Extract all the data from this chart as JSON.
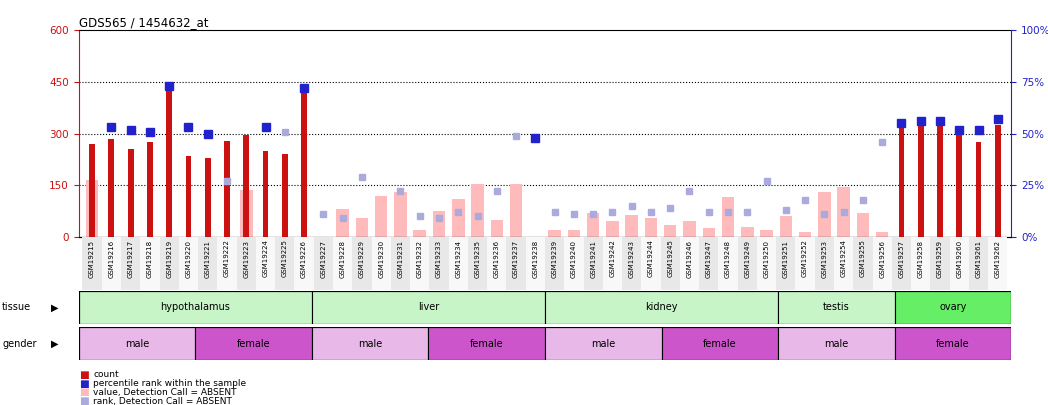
{
  "title": "GDS565 / 1454632_at",
  "samples": [
    "GSM19215",
    "GSM19216",
    "GSM19217",
    "GSM19218",
    "GSM19219",
    "GSM19220",
    "GSM19221",
    "GSM19222",
    "GSM19223",
    "GSM19224",
    "GSM19225",
    "GSM19226",
    "GSM19227",
    "GSM19228",
    "GSM19229",
    "GSM19230",
    "GSM19231",
    "GSM19232",
    "GSM19233",
    "GSM19234",
    "GSM19235",
    "GSM19236",
    "GSM19237",
    "GSM19238",
    "GSM19239",
    "GSM19240",
    "GSM19241",
    "GSM19242",
    "GSM19243",
    "GSM19244",
    "GSM19245",
    "GSM19246",
    "GSM19247",
    "GSM19248",
    "GSM19249",
    "GSM19250",
    "GSM19251",
    "GSM19252",
    "GSM19253",
    "GSM19254",
    "GSM19255",
    "GSM19256",
    "GSM19257",
    "GSM19258",
    "GSM19259",
    "GSM19260",
    "GSM19261",
    "GSM19262"
  ],
  "count": [
    270,
    285,
    255,
    275,
    450,
    235,
    230,
    280,
    295,
    250,
    240,
    430,
    null,
    null,
    null,
    null,
    null,
    null,
    null,
    null,
    null,
    null,
    null,
    null,
    null,
    null,
    null,
    null,
    null,
    null,
    null,
    null,
    null,
    null,
    null,
    null,
    null,
    null,
    null,
    null,
    null,
    null,
    325,
    330,
    330,
    300,
    275,
    325
  ],
  "percentile_rank_pct": [
    null,
    53,
    52,
    51,
    73,
    53,
    50,
    null,
    null,
    53,
    null,
    72,
    null,
    null,
    null,
    null,
    null,
    null,
    null,
    null,
    null,
    null,
    null,
    48,
    null,
    null,
    null,
    null,
    null,
    null,
    null,
    null,
    null,
    null,
    null,
    null,
    null,
    null,
    null,
    null,
    null,
    null,
    55,
    56,
    56,
    52,
    52,
    57
  ],
  "absent_value": [
    165,
    null,
    null,
    null,
    null,
    null,
    null,
    null,
    135,
    null,
    null,
    null,
    null,
    80,
    55,
    120,
    130,
    20,
    75,
    110,
    155,
    50,
    155,
    null,
    20,
    20,
    70,
    45,
    65,
    55,
    35,
    45,
    25,
    115,
    30,
    20,
    60,
    15,
    130,
    145,
    70,
    15,
    null,
    null,
    null,
    null,
    null,
    null
  ],
  "absent_rank_pct": [
    null,
    null,
    null,
    null,
    null,
    null,
    null,
    27,
    null,
    null,
    51,
    null,
    11,
    9,
    29,
    null,
    22,
    10,
    9,
    12,
    10,
    22,
    49,
    null,
    12,
    11,
    11,
    12,
    15,
    12,
    14,
    22,
    12,
    12,
    12,
    27,
    13,
    18,
    11,
    12,
    18,
    46,
    null,
    null,
    null,
    null,
    null,
    null
  ],
  "tissue_groups": [
    {
      "label": "hypothalamus",
      "start": 0,
      "end": 12
    },
    {
      "label": "liver",
      "start": 12,
      "end": 24
    },
    {
      "label": "kidney",
      "start": 24,
      "end": 36
    },
    {
      "label": "testis",
      "start": 36,
      "end": 42
    },
    {
      "label": "ovary",
      "start": 42,
      "end": 48
    }
  ],
  "gender_groups": [
    {
      "label": "male",
      "start": 0,
      "end": 6
    },
    {
      "label": "female",
      "start": 6,
      "end": 12
    },
    {
      "label": "male",
      "start": 12,
      "end": 18
    },
    {
      "label": "female",
      "start": 18,
      "end": 24
    },
    {
      "label": "male",
      "start": 24,
      "end": 30
    },
    {
      "label": "female",
      "start": 30,
      "end": 36
    },
    {
      "label": "male",
      "start": 36,
      "end": 42
    },
    {
      "label": "female",
      "start": 42,
      "end": 48
    }
  ],
  "left_ylim": [
    0,
    600
  ],
  "right_ylim": [
    0,
    100
  ],
  "left_yticks": [
    0,
    150,
    300,
    450,
    600
  ],
  "right_yticks": [
    0,
    25,
    50,
    75,
    100
  ],
  "hlines": [
    150,
    300,
    450
  ],
  "bar_color": "#cc1111",
  "dot_color": "#2222cc",
  "absent_bar_color": "#ffbbbb",
  "absent_dot_color": "#aaaadd",
  "tissue_color": "#c8f5c8",
  "ovary_color": "#66ee66",
  "male_color": "#e8b8e8",
  "female_color": "#cc55cc"
}
